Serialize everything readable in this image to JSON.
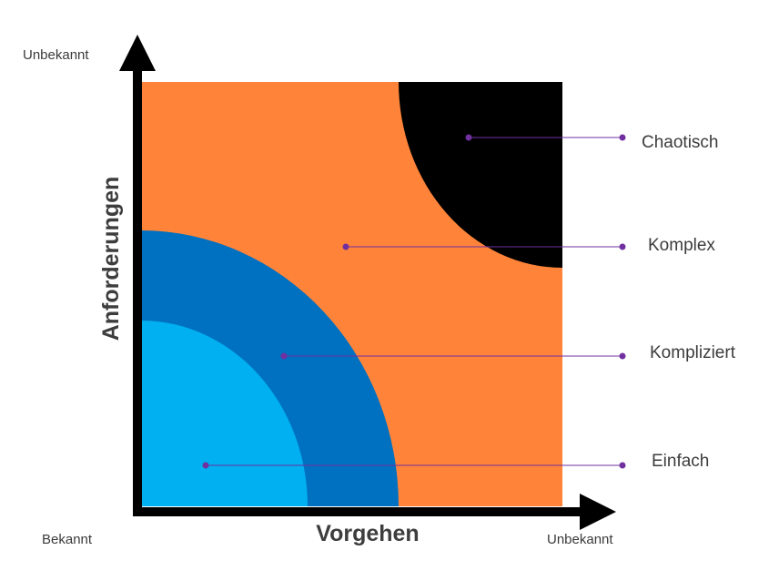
{
  "axes": {
    "x_title": "Vorgehen",
    "y_title": "Anforderungen",
    "origin_label": "Bekannt",
    "x_end_label": "Unbekannt",
    "y_end_label": "Unbekannt"
  },
  "zones": [
    {
      "name": "Chaotisch",
      "color": "#000000"
    },
    {
      "name": "Komplex",
      "color": "#FF8439"
    },
    {
      "name": "Kompliziert",
      "color": "#0070C0"
    },
    {
      "name": "Einfach",
      "color": "#00B0F0"
    }
  ],
  "colors": {
    "axis": "#000000",
    "leader": "#7030A0"
  }
}
